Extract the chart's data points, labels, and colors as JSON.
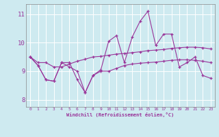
{
  "xlabel": "Windchill (Refroidissement éolien,°C)",
  "background_color": "#ceeaf0",
  "line_color": "#993399",
  "grid_color": "#aadddd",
  "xlim": [
    -0.5,
    23.5
  ],
  "ylim": [
    7.75,
    11.35
  ],
  "yticks": [
    8,
    9,
    10,
    11
  ],
  "xticks": [
    0,
    1,
    2,
    3,
    4,
    5,
    6,
    7,
    8,
    9,
    10,
    11,
    12,
    13,
    14,
    15,
    16,
    17,
    18,
    19,
    20,
    21,
    22,
    23
  ],
  "series": [
    [
      9.5,
      9.2,
      8.7,
      8.65,
      9.3,
      9.3,
      8.7,
      8.25,
      8.85,
      9.05,
      10.05,
      10.25,
      9.3,
      10.2,
      10.75,
      11.1,
      9.9,
      10.3,
      10.3,
      9.15,
      9.3,
      9.5,
      8.85,
      8.75
    ],
    [
      9.5,
      9.3,
      9.3,
      9.15,
      9.15,
      9.25,
      9.35,
      9.42,
      9.5,
      9.52,
      9.56,
      9.6,
      9.62,
      9.65,
      9.68,
      9.72,
      9.74,
      9.76,
      9.8,
      9.82,
      9.84,
      9.84,
      9.82,
      9.78
    ],
    [
      9.5,
      9.2,
      8.7,
      8.65,
      9.3,
      9.15,
      9.0,
      8.25,
      8.85,
      9.0,
      9.0,
      9.1,
      9.2,
      9.25,
      9.28,
      9.3,
      9.32,
      9.35,
      9.38,
      9.4,
      9.4,
      9.38,
      9.35,
      9.3
    ]
  ]
}
